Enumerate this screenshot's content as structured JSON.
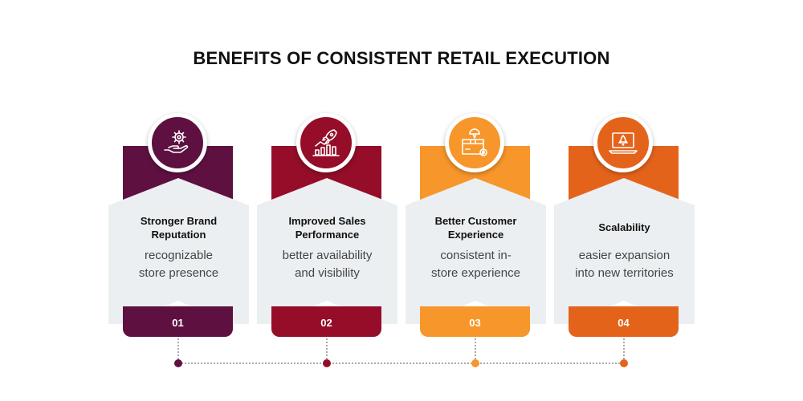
{
  "title": "BENEFITS OF CONSISTENT RETAIL EXECUTION",
  "colors": {
    "panel": "#eceff1",
    "c1": "#5e1140",
    "c2": "#950d28",
    "c3": "#f7962b",
    "c4": "#e4631b"
  },
  "cards": [
    {
      "number": "01",
      "heading_line1": "Stronger Brand",
      "heading_line2": "Reputation",
      "desc_line1": "recognizable",
      "desc_line2": "store presence",
      "icon": "hand-gear-icon"
    },
    {
      "number": "02",
      "heading_line1": "Improved Sales",
      "heading_line2": "Performance",
      "desc_line1": "better availability",
      "desc_line2": "and visibility",
      "icon": "rocket-chart-icon"
    },
    {
      "number": "03",
      "heading_line1": "Better Customer",
      "heading_line2": "Experience",
      "desc_line1": "consistent in-",
      "desc_line2": "store experience",
      "icon": "box-settings-icon"
    },
    {
      "number": "04",
      "heading": "Scalability",
      "desc_line1": "easier expansion",
      "desc_line2": "into new territories",
      "icon": "laptop-rocket-icon"
    }
  ]
}
